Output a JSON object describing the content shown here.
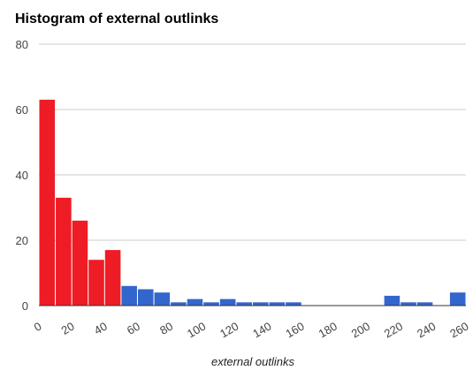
{
  "chart_data": {
    "type": "bar",
    "title": "Histogram of external outlinks",
    "xlabel": "external outlinks",
    "ylabel": "",
    "bin_width": 10,
    "xlim": [
      0,
      260
    ],
    "ylim": [
      0,
      80
    ],
    "x_ticks": [
      "0",
      "20",
      "40",
      "60",
      "80",
      "100",
      "120",
      "140",
      "160",
      "180",
      "200",
      "220",
      "240",
      "260"
    ],
    "y_ticks": [
      "0",
      "20",
      "40",
      "60",
      "80"
    ],
    "grid": true,
    "legend": "none",
    "colors": {
      "highlight": "#ee1c25",
      "default": "#3366cc"
    },
    "bins": [
      {
        "x": 0,
        "value": 63,
        "color": "highlight"
      },
      {
        "x": 10,
        "value": 33,
        "color": "highlight"
      },
      {
        "x": 20,
        "value": 26,
        "color": "highlight"
      },
      {
        "x": 30,
        "value": 14,
        "color": "highlight"
      },
      {
        "x": 40,
        "value": 17,
        "color": "highlight"
      },
      {
        "x": 50,
        "value": 6,
        "color": "default"
      },
      {
        "x": 60,
        "value": 5,
        "color": "default"
      },
      {
        "x": 70,
        "value": 4,
        "color": "default"
      },
      {
        "x": 80,
        "value": 1,
        "color": "default"
      },
      {
        "x": 90,
        "value": 2,
        "color": "default"
      },
      {
        "x": 100,
        "value": 1,
        "color": "default"
      },
      {
        "x": 110,
        "value": 2,
        "color": "default"
      },
      {
        "x": 120,
        "value": 1,
        "color": "default"
      },
      {
        "x": 130,
        "value": 1,
        "color": "default"
      },
      {
        "x": 140,
        "value": 1,
        "color": "default"
      },
      {
        "x": 150,
        "value": 1,
        "color": "default"
      },
      {
        "x": 210,
        "value": 3,
        "color": "default"
      },
      {
        "x": 220,
        "value": 1,
        "color": "default"
      },
      {
        "x": 230,
        "value": 1,
        "color": "default"
      },
      {
        "x": 250,
        "value": 4,
        "color": "default"
      }
    ]
  }
}
